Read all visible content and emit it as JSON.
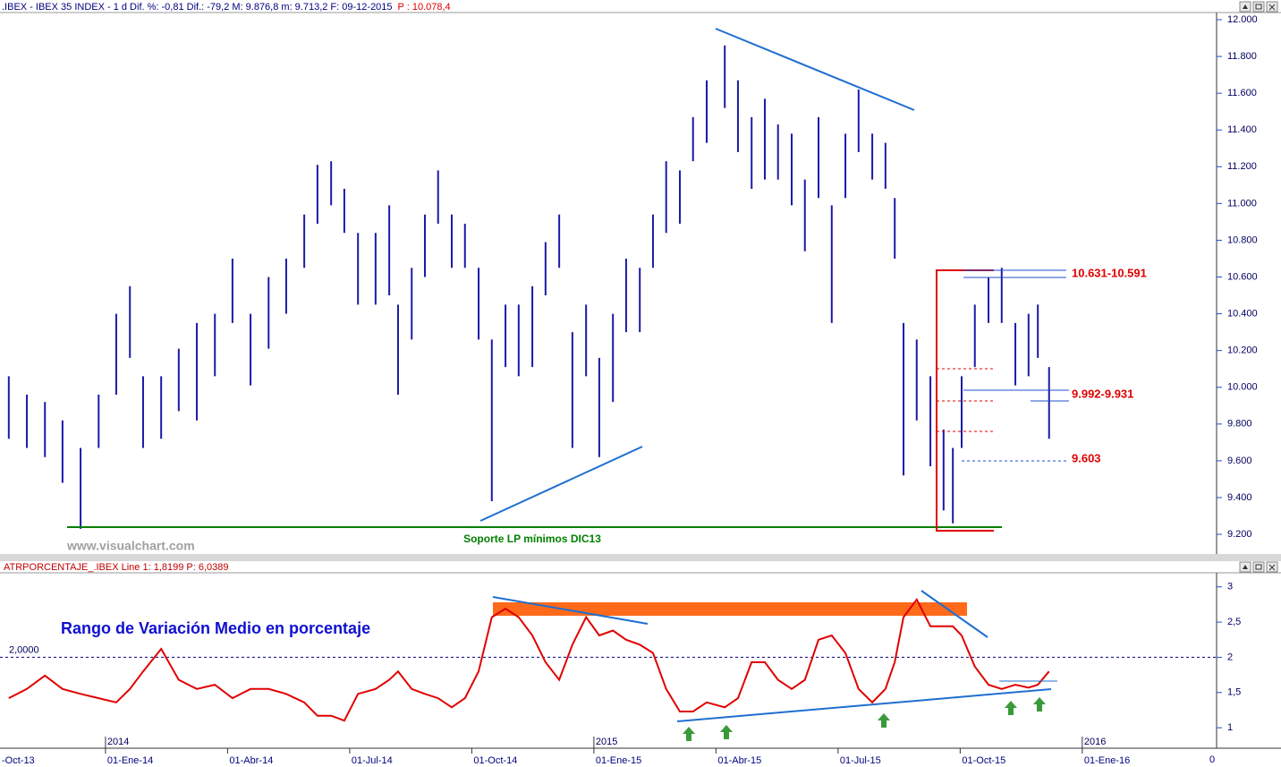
{
  "chart_data": [
    {
      "type": "hlbar",
      "title": ".IBEX - IBEX 35 INDEX - 1 d Dif. %: -0,81 Dif.: -79,2 M: 9.876,8 m: 9.713,2 F: 09-12-2015",
      "title_extra": "P : 10.078,4",
      "color": "#1a1aa8",
      "x": [
        2013.802,
        2013.839,
        2013.876,
        2013.912,
        2013.949,
        2013.986,
        2014.022,
        2014.05,
        2014.077,
        2014.114,
        2014.15,
        2014.187,
        2014.224,
        2014.26,
        2014.297,
        2014.334,
        2014.37,
        2014.407,
        2014.434,
        2014.462,
        2014.489,
        2014.517,
        2014.553,
        2014.581,
        2014.599,
        2014.627,
        2014.654,
        2014.681,
        2014.709,
        2014.736,
        2014.764,
        2014.791,
        2014.819,
        2014.846,
        2014.874,
        2014.901,
        2014.929,
        2014.956,
        2014.984,
        2015.011,
        2015.039,
        2015.066,
        2015.094,
        2015.121,
        2015.148,
        2015.176,
        2015.203,
        2015.231,
        2015.268,
        2015.295,
        2015.323,
        2015.35,
        2015.377,
        2015.405,
        2015.432,
        2015.46,
        2015.487,
        2015.515,
        2015.542,
        2015.57,
        2015.597,
        2015.616,
        2015.634,
        2015.661,
        2015.689,
        2015.716,
        2015.735,
        2015.753,
        2015.78,
        2015.808,
        2015.835,
        2015.863,
        2015.89,
        2015.909,
        2015.932
      ],
      "high": [
        10060,
        9960,
        9920,
        9820,
        9670,
        9960,
        10400,
        10550,
        10060,
        10060,
        10210,
        10350,
        10400,
        10700,
        10400,
        10600,
        10700,
        10940,
        11210,
        11230,
        11080,
        10840,
        10840,
        10990,
        10450,
        10650,
        10940,
        11180,
        10940,
        10890,
        10650,
        10260,
        10450,
        10450,
        10550,
        10790,
        10940,
        10300,
        10450,
        10160,
        10400,
        10700,
        10650,
        10940,
        11230,
        11180,
        11470,
        11670,
        11860,
        11670,
        11470,
        11570,
        11430,
        11380,
        11130,
        11470,
        10990,
        11380,
        11620,
        11380,
        11330,
        11030,
        10350,
        10260,
        10060,
        9770,
        9670,
        10060,
        10450,
        10600,
        10650,
        10350,
        10400,
        10450,
        10110
      ],
      "low": [
        9720,
        9670,
        9620,
        9480,
        9230,
        9670,
        9960,
        10160,
        9670,
        9720,
        9870,
        9820,
        10060,
        10350,
        10010,
        10210,
        10400,
        10650,
        10890,
        10990,
        10840,
        10450,
        10450,
        10500,
        9960,
        10260,
        10600,
        10890,
        10650,
        10650,
        10260,
        9380,
        10110,
        10060,
        10110,
        10500,
        10650,
        9670,
        10060,
        9620,
        9920,
        10300,
        10300,
        10650,
        10840,
        10890,
        11230,
        11330,
        11520,
        11280,
        11080,
        11130,
        11130,
        10990,
        10740,
        11030,
        10350,
        11030,
        11280,
        11130,
        11080,
        10700,
        9520,
        9820,
        9570,
        9330,
        9260,
        9670,
        10110,
        10350,
        10350,
        10010,
        10060,
        10160,
        9720
      ],
      "xlim": [
        2013.784,
        2016.275
      ],
      "ylim": [
        9127,
        12039
      ],
      "yticks": [
        {
          "value": 9200,
          "label": "9.200"
        },
        {
          "value": 9400,
          "label": "9.400"
        },
        {
          "value": 9600,
          "label": "9.600"
        },
        {
          "value": 9800,
          "label": "9.800"
        },
        {
          "value": 10000,
          "label": "10.000"
        },
        {
          "value": 10200,
          "label": "10.200"
        },
        {
          "value": 10400,
          "label": "10.400"
        },
        {
          "value": 10600,
          "label": "10.600"
        },
        {
          "value": 10800,
          "label": "10.800"
        },
        {
          "value": 11000,
          "label": "11.000"
        },
        {
          "value": 11200,
          "label": "11.200"
        },
        {
          "value": 11400,
          "label": "11.400"
        },
        {
          "value": 11600,
          "label": "11.600"
        },
        {
          "value": 11800,
          "label": "11.800"
        },
        {
          "value": 12000,
          "label": "12.000"
        }
      ],
      "annotations": [
        "10.631-10.591",
        "9.992-9.931",
        "9.603",
        "Soporte LP mínimos DIC13"
      ],
      "watermark": "www.visualchart.com"
    },
    {
      "type": "line",
      "title": "ATRPORCENTAJE_.IBEX Line 1: 1,8199 P: 6,0389",
      "subtitle": "Rango de Variación Medio en porcentaje",
      "color": "#e00000",
      "values": [
        1.42,
        1.55,
        1.74,
        1.55,
        1.48,
        1.42,
        1.36,
        1.55,
        1.8,
        2.12,
        1.68,
        1.55,
        1.61,
        1.42,
        1.55,
        1.55,
        1.48,
        1.36,
        1.17,
        1.17,
        1.1,
        1.48,
        1.55,
        1.68,
        1.8,
        1.55,
        1.48,
        1.42,
        1.29,
        1.42,
        1.8,
        2.57,
        2.69,
        2.57,
        2.31,
        1.93,
        1.68,
        2.18,
        2.57,
        2.31,
        2.38,
        2.25,
        2.18,
        2.06,
        1.55,
        1.23,
        1.23,
        1.36,
        1.29,
        1.42,
        1.93,
        1.93,
        1.68,
        1.55,
        1.68,
        2.25,
        2.31,
        2.06,
        1.55,
        1.36,
        1.55,
        1.93,
        2.57,
        2.82,
        2.44,
        2.44,
        2.44,
        2.31,
        1.87,
        1.61,
        1.55,
        1.61,
        1.57,
        1.61,
        1.8
      ],
      "ylim": [
        0.76,
        3.2
      ],
      "yticks": [
        1,
        {
          "value": 1.5,
          "label": "1,5"
        },
        2,
        {
          "value": 2.5,
          "label": "2,5"
        },
        3
      ],
      "ref_line": {
        "value": 2,
        "label": "2,0000"
      },
      "xticks": [
        {
          "value": 2013.75,
          "label": "-Oct-13"
        },
        {
          "value": 2014,
          "label": "01-Ene-14"
        },
        {
          "value": 2014.25,
          "label": "01-Abr-14"
        },
        {
          "value": 2014.5,
          "label": "01-Jul-14"
        },
        {
          "value": 2014.75,
          "label": "01-Oct-14"
        },
        {
          "value": 2015,
          "label": "01-Ene-15"
        },
        {
          "value": 2015.25,
          "label": "01-Abr-15"
        },
        {
          "value": 2015.5,
          "label": "01-Jul-15"
        },
        {
          "value": 2015.75,
          "label": "01-Oct-15"
        },
        {
          "value": 2016,
          "label": "01-Ene-16"
        }
      ],
      "year_markers": [
        2014,
        2015,
        2016
      ],
      "axis_corner": "0"
    }
  ]
}
